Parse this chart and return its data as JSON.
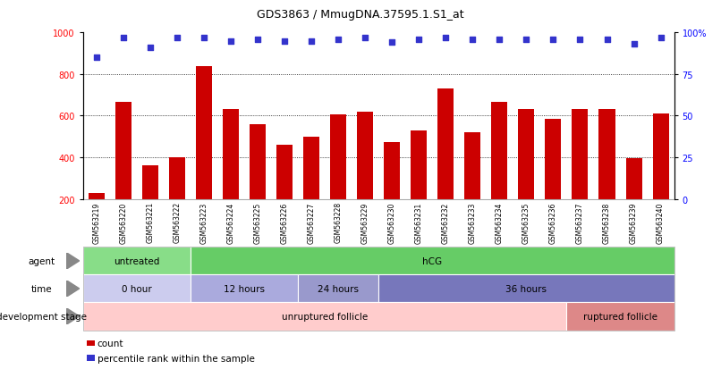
{
  "title": "GDS3863 / MmugDNA.37595.1.S1_at",
  "samples": [
    "GSM563219",
    "GSM563220",
    "GSM563221",
    "GSM563222",
    "GSM563223",
    "GSM563224",
    "GSM563225",
    "GSM563226",
    "GSM563227",
    "GSM563228",
    "GSM563229",
    "GSM563230",
    "GSM563231",
    "GSM563232",
    "GSM563233",
    "GSM563234",
    "GSM563235",
    "GSM563236",
    "GSM563237",
    "GSM563238",
    "GSM563239",
    "GSM563240"
  ],
  "counts": [
    230,
    665,
    360,
    400,
    840,
    630,
    560,
    460,
    500,
    605,
    620,
    475,
    530,
    730,
    520,
    665,
    630,
    585,
    630,
    630,
    395,
    610
  ],
  "percentiles": [
    85,
    97,
    91,
    97,
    97,
    95,
    96,
    95,
    95,
    96,
    97,
    94,
    96,
    97,
    96,
    96,
    96,
    96,
    96,
    96,
    93,
    97
  ],
  "bar_color": "#cc0000",
  "dot_color": "#3333cc",
  "ylim_left": [
    200,
    1000
  ],
  "ylim_right": [
    0,
    100
  ],
  "yticks_left": [
    200,
    400,
    600,
    800,
    1000
  ],
  "yticks_right": [
    0,
    25,
    50,
    75,
    100
  ],
  "grid_lines": [
    400,
    600,
    800
  ],
  "agent_groups": [
    {
      "label": "untreated",
      "start": 0,
      "end": 4,
      "color": "#88dd88"
    },
    {
      "label": "hCG",
      "start": 4,
      "end": 22,
      "color": "#66cc66"
    }
  ],
  "time_groups": [
    {
      "label": "0 hour",
      "start": 0,
      "end": 4,
      "color": "#ccccee"
    },
    {
      "label": "12 hours",
      "start": 4,
      "end": 8,
      "color": "#aaaadd"
    },
    {
      "label": "24 hours",
      "start": 8,
      "end": 11,
      "color": "#9999cc"
    },
    {
      "label": "36 hours",
      "start": 11,
      "end": 22,
      "color": "#7777bb"
    }
  ],
  "dev_groups": [
    {
      "label": "unruptured follicle",
      "start": 0,
      "end": 18,
      "color": "#ffcccc"
    },
    {
      "label": "ruptured follicle",
      "start": 18,
      "end": 22,
      "color": "#dd8888"
    }
  ],
  "legend_count_color": "#cc0000",
  "legend_dot_color": "#3333cc",
  "bg_color": "#ffffff"
}
